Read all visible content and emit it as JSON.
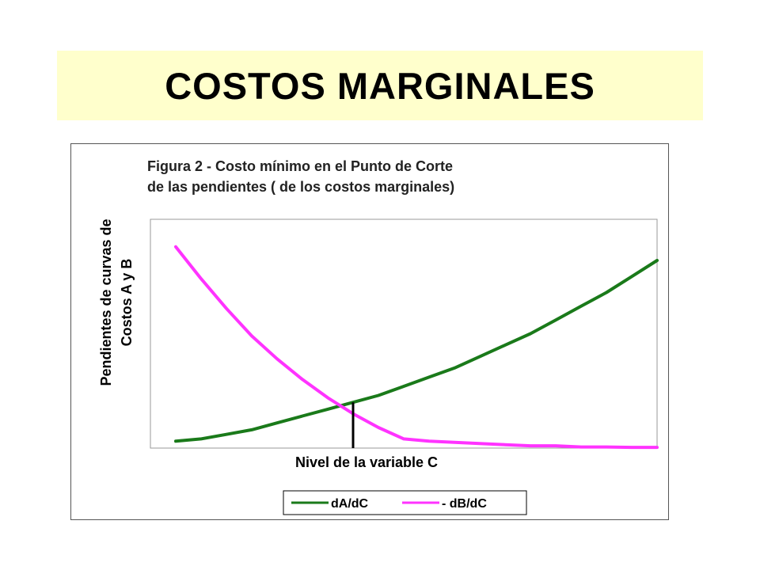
{
  "slide": {
    "title": "COSTOS MARGINALES"
  },
  "chart_data": {
    "type": "line",
    "title_lines": [
      "Figura 2 - Costo mínimo en el Punto de Corte",
      "de las pendientes ( de los costos marginales)"
    ],
    "xlabel": "Nivel de la variable C",
    "ylabel_lines": [
      "Pendientes de curvas de",
      "Costos A y B"
    ],
    "xlim": [
      0,
      1
    ],
    "ylim": [
      0,
      1
    ],
    "grid": false,
    "legend_position": "bottom",
    "series": [
      {
        "name": "dA/dC",
        "color": "#1a7a1a",
        "x": [
          0.05,
          0.1,
          0.15,
          0.2,
          0.25,
          0.3,
          0.35,
          0.4,
          0.45,
          0.5,
          0.55,
          0.6,
          0.65,
          0.7,
          0.75,
          0.8,
          0.85,
          0.9,
          0.95,
          1.0
        ],
        "y": [
          0.03,
          0.04,
          0.06,
          0.08,
          0.11,
          0.14,
          0.17,
          0.2,
          0.23,
          0.27,
          0.31,
          0.35,
          0.4,
          0.45,
          0.5,
          0.56,
          0.62,
          0.68,
          0.75,
          0.82
        ]
      },
      {
        "name": "- dB/dC",
        "color": "#ff33ff",
        "x": [
          0.05,
          0.1,
          0.15,
          0.2,
          0.25,
          0.3,
          0.35,
          0.4,
          0.45,
          0.5,
          0.55,
          0.6,
          0.65,
          0.7,
          0.75,
          0.8,
          0.85,
          0.9,
          0.95,
          1.0
        ],
        "y": [
          0.88,
          0.74,
          0.61,
          0.49,
          0.39,
          0.3,
          0.22,
          0.15,
          0.09,
          0.04,
          0.03,
          0.025,
          0.02,
          0.015,
          0.01,
          0.01,
          0.005,
          0.005,
          0.003,
          0.003
        ]
      }
    ],
    "annotations": [
      {
        "type": "vertical-marker",
        "x": 0.4,
        "y": 0.2,
        "color": "#000000"
      }
    ]
  }
}
